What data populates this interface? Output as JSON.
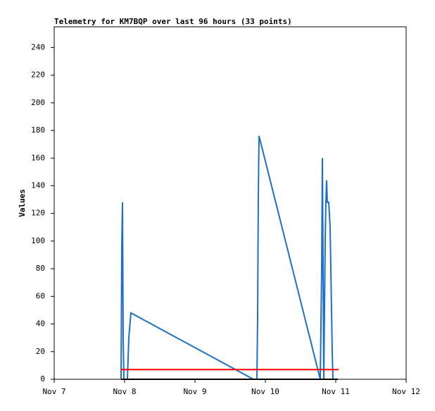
{
  "chart_data": {
    "type": "line",
    "title": "Telemetry for KM7BQP over last 96 hours (33 points)",
    "y_label": "Values",
    "xlim": [
      7,
      12
    ],
    "xticks": [
      {
        "value": 7,
        "label": "Nov 7"
      },
      {
        "value": 8,
        "label": "Nov 8"
      },
      {
        "value": 9,
        "label": "Nov 9"
      },
      {
        "value": 10,
        "label": "Nov 10"
      },
      {
        "value": 11,
        "label": "Nov 11"
      },
      {
        "value": 12,
        "label": "Nov 12"
      }
    ],
    "ylim": [
      0,
      255
    ],
    "yticks": [
      0,
      20,
      40,
      60,
      80,
      100,
      120,
      140,
      160,
      180,
      200,
      220,
      240
    ],
    "series": [
      {
        "color": "#1f6fc5",
        "x": [
          7.95,
          7.96,
          7.97,
          7.98,
          7.99,
          8.04,
          8.06,
          8.09,
          9.83,
          9.88,
          9.89,
          9.9,
          9.91,
          10.78,
          10.8,
          10.81,
          10.82,
          10.83,
          10.85,
          10.86,
          10.87,
          10.88,
          10.9,
          10.92,
          10.93,
          10.95,
          10.96
        ],
        "values": [
          0,
          96,
          128,
          30,
          0,
          0,
          30,
          48,
          0,
          0,
          45,
          133,
          176,
          0,
          80,
          160,
          80,
          0,
          100,
          128,
          144,
          128,
          128,
          110,
          80,
          20,
          0
        ]
      },
      {
        "color": "#000000",
        "x": [
          7.95,
          11.03
        ],
        "values": [
          0,
          0
        ]
      },
      {
        "color": "#ff0000",
        "x": [
          7.95,
          11.04
        ],
        "values": [
          7,
          7
        ]
      }
    ]
  }
}
